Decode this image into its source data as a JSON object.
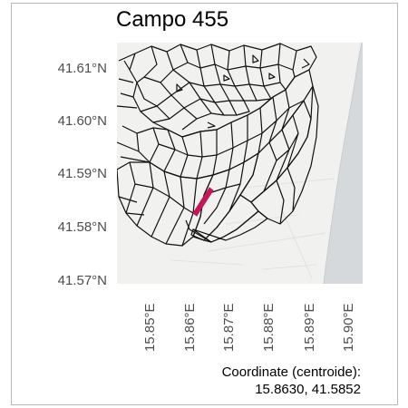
{
  "title": "Campo 455",
  "y_ticks": [
    "41.61°N",
    "41.60°N",
    "41.59°N",
    "41.58°N",
    "41.57°N"
  ],
  "x_ticks": [
    "15.85°E",
    "15.86°E",
    "15.87°E",
    "15.88°E",
    "15.89°E",
    "15.90°E"
  ],
  "caption_line1": "Coordinate (centroide):",
  "caption_line2": "15.8630, 41.5852",
  "colors": {
    "highlight": "#c2185b",
    "water": "#d5d9dc",
    "land": "#f1f2ef",
    "roads": "#111111"
  }
}
